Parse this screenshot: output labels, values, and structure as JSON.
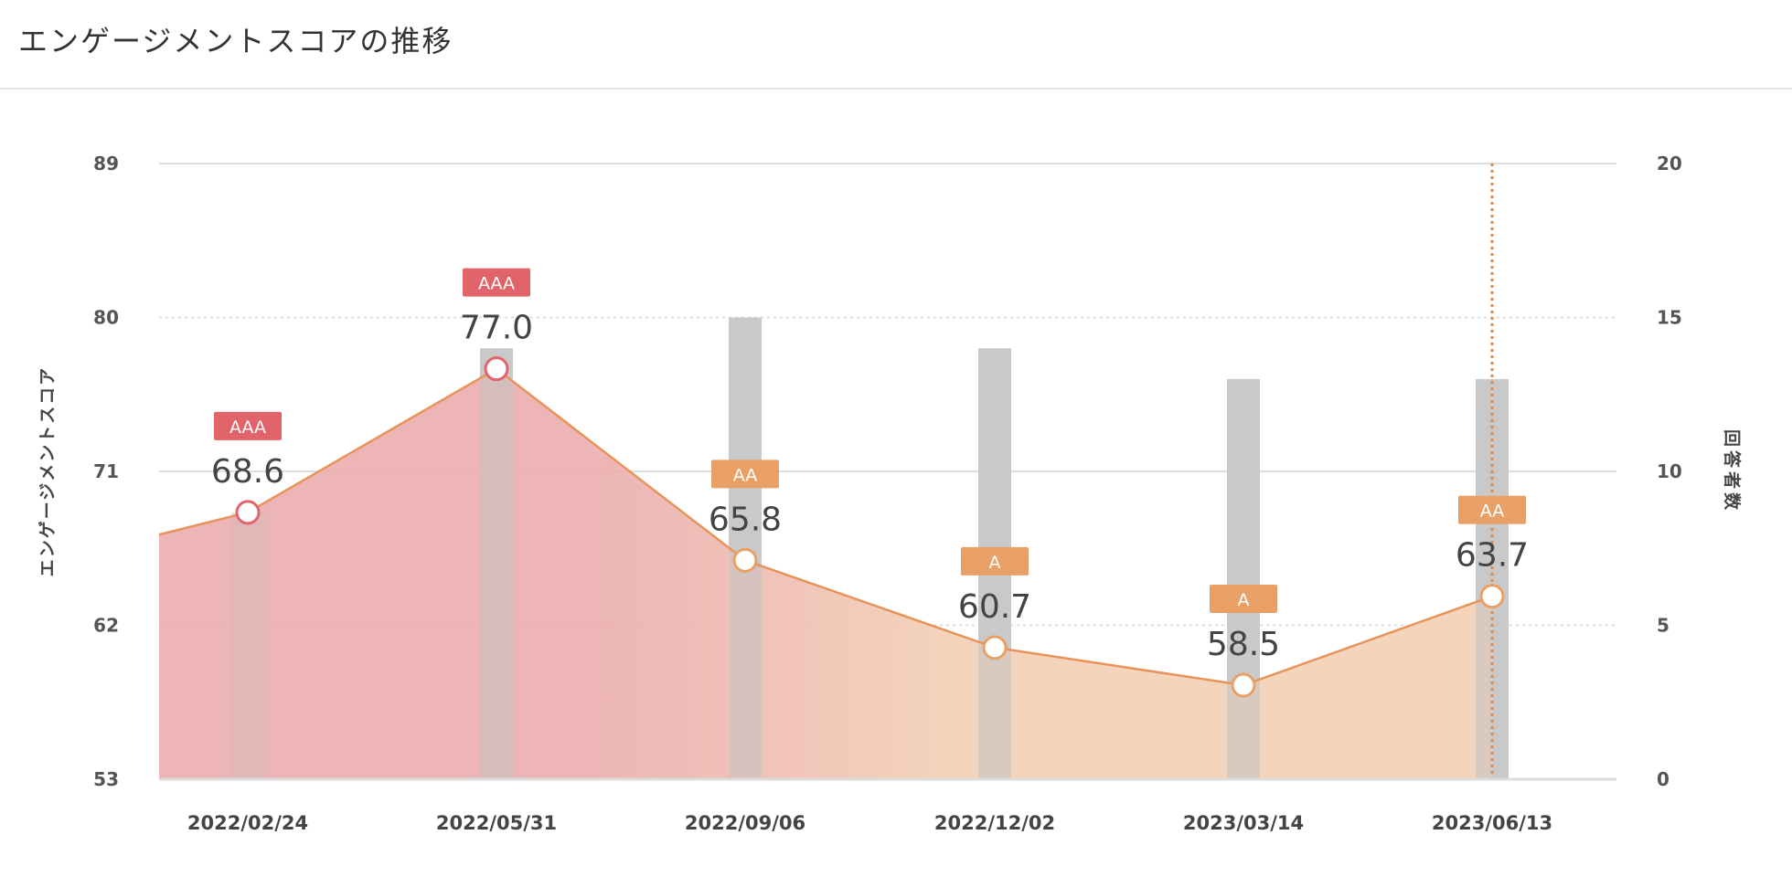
{
  "page": {
    "title": "エンゲージメントスコアの推移"
  },
  "colors": {
    "grade_AAA": "#e06469",
    "grade_AA": "#e8a066",
    "grade_A": "#e8a066",
    "line": "#e8935a",
    "bar": "#c6c6c6",
    "area_left": "#ebadad",
    "area_right": "#f3cfb4",
    "grid": "#dedede",
    "current_marker": "#e08a4a"
  },
  "chart_data": {
    "type": "line",
    "categories": [
      "2022/02/24",
      "2022/05/31",
      "2022/09/06",
      "2022/12/02",
      "2023/03/14",
      "2023/06/13"
    ],
    "ylabel": "エンゲージメントスコア",
    "y2label": "回答者数",
    "ylim": [
      53,
      89
    ],
    "y_ticks": [
      53,
      62,
      71,
      80,
      89
    ],
    "y2lim": [
      0,
      20
    ],
    "y2_ticks": [
      0,
      5,
      10,
      15,
      20
    ],
    "series": [
      {
        "values": [
          68.6,
          77.0,
          65.8,
          60.7,
          58.5,
          63.7
        ],
        "axis": "left",
        "type": "line-area"
      },
      {
        "values": [
          null,
          14,
          15,
          14,
          13,
          13
        ],
        "axis": "right",
        "type": "bar"
      }
    ],
    "value_labels": [
      "68.6",
      "77.0",
      "65.8",
      "60.7",
      "58.5",
      "63.7"
    ],
    "grades": [
      "AAA",
      "AAA",
      "AA",
      "A",
      "A",
      "AA"
    ],
    "area_left_start": 67.3,
    "highlight_category": "2023/06/13",
    "grid": true
  }
}
